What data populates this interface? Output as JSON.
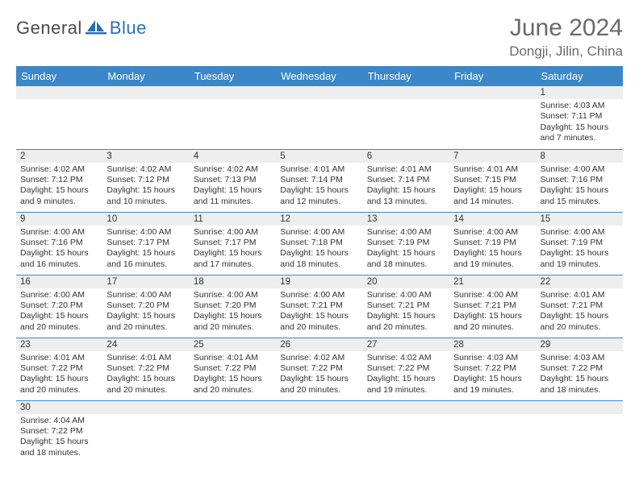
{
  "logo": {
    "part1": "General",
    "part2": "Blue"
  },
  "title": "June 2024",
  "location": "Dongji, Jilin, China",
  "colors": {
    "header_bg": "#3b87c8",
    "header_text": "#ffffff",
    "daynum_bg": "#eeeeee",
    "border": "#3b87c8",
    "title_color": "#6a6a6a",
    "logo_gray": "#4a4a4a",
    "logo_blue": "#2a6fb5"
  },
  "weekdays": [
    "Sunday",
    "Monday",
    "Tuesday",
    "Wednesday",
    "Thursday",
    "Friday",
    "Saturday"
  ],
  "weeks": [
    [
      null,
      null,
      null,
      null,
      null,
      null,
      {
        "n": "1",
        "sr": "4:03 AM",
        "ss": "7:11 PM",
        "dl": "15 hours and 7 minutes."
      }
    ],
    [
      {
        "n": "2",
        "sr": "4:02 AM",
        "ss": "7:12 PM",
        "dl": "15 hours and 9 minutes."
      },
      {
        "n": "3",
        "sr": "4:02 AM",
        "ss": "7:12 PM",
        "dl": "15 hours and 10 minutes."
      },
      {
        "n": "4",
        "sr": "4:02 AM",
        "ss": "7:13 PM",
        "dl": "15 hours and 11 minutes."
      },
      {
        "n": "5",
        "sr": "4:01 AM",
        "ss": "7:14 PM",
        "dl": "15 hours and 12 minutes."
      },
      {
        "n": "6",
        "sr": "4:01 AM",
        "ss": "7:14 PM",
        "dl": "15 hours and 13 minutes."
      },
      {
        "n": "7",
        "sr": "4:01 AM",
        "ss": "7:15 PM",
        "dl": "15 hours and 14 minutes."
      },
      {
        "n": "8",
        "sr": "4:00 AM",
        "ss": "7:16 PM",
        "dl": "15 hours and 15 minutes."
      }
    ],
    [
      {
        "n": "9",
        "sr": "4:00 AM",
        "ss": "7:16 PM",
        "dl": "15 hours and 16 minutes."
      },
      {
        "n": "10",
        "sr": "4:00 AM",
        "ss": "7:17 PM",
        "dl": "15 hours and 16 minutes."
      },
      {
        "n": "11",
        "sr": "4:00 AM",
        "ss": "7:17 PM",
        "dl": "15 hours and 17 minutes."
      },
      {
        "n": "12",
        "sr": "4:00 AM",
        "ss": "7:18 PM",
        "dl": "15 hours and 18 minutes."
      },
      {
        "n": "13",
        "sr": "4:00 AM",
        "ss": "7:19 PM",
        "dl": "15 hours and 18 minutes."
      },
      {
        "n": "14",
        "sr": "4:00 AM",
        "ss": "7:19 PM",
        "dl": "15 hours and 19 minutes."
      },
      {
        "n": "15",
        "sr": "4:00 AM",
        "ss": "7:19 PM",
        "dl": "15 hours and 19 minutes."
      }
    ],
    [
      {
        "n": "16",
        "sr": "4:00 AM",
        "ss": "7:20 PM",
        "dl": "15 hours and 20 minutes."
      },
      {
        "n": "17",
        "sr": "4:00 AM",
        "ss": "7:20 PM",
        "dl": "15 hours and 20 minutes."
      },
      {
        "n": "18",
        "sr": "4:00 AM",
        "ss": "7:20 PM",
        "dl": "15 hours and 20 minutes."
      },
      {
        "n": "19",
        "sr": "4:00 AM",
        "ss": "7:21 PM",
        "dl": "15 hours and 20 minutes."
      },
      {
        "n": "20",
        "sr": "4:00 AM",
        "ss": "7:21 PM",
        "dl": "15 hours and 20 minutes."
      },
      {
        "n": "21",
        "sr": "4:00 AM",
        "ss": "7:21 PM",
        "dl": "15 hours and 20 minutes."
      },
      {
        "n": "22",
        "sr": "4:01 AM",
        "ss": "7:21 PM",
        "dl": "15 hours and 20 minutes."
      }
    ],
    [
      {
        "n": "23",
        "sr": "4:01 AM",
        "ss": "7:22 PM",
        "dl": "15 hours and 20 minutes."
      },
      {
        "n": "24",
        "sr": "4:01 AM",
        "ss": "7:22 PM",
        "dl": "15 hours and 20 minutes."
      },
      {
        "n": "25",
        "sr": "4:01 AM",
        "ss": "7:22 PM",
        "dl": "15 hours and 20 minutes."
      },
      {
        "n": "26",
        "sr": "4:02 AM",
        "ss": "7:22 PM",
        "dl": "15 hours and 20 minutes."
      },
      {
        "n": "27",
        "sr": "4:02 AM",
        "ss": "7:22 PM",
        "dl": "15 hours and 19 minutes."
      },
      {
        "n": "28",
        "sr": "4:03 AM",
        "ss": "7:22 PM",
        "dl": "15 hours and 19 minutes."
      },
      {
        "n": "29",
        "sr": "4:03 AM",
        "ss": "7:22 PM",
        "dl": "15 hours and 18 minutes."
      }
    ],
    [
      {
        "n": "30",
        "sr": "4:04 AM",
        "ss": "7:22 PM",
        "dl": "15 hours and 18 minutes."
      },
      null,
      null,
      null,
      null,
      null,
      null
    ]
  ],
  "labels": {
    "sunrise": "Sunrise: ",
    "sunset": "Sunset: ",
    "daylight": "Daylight: "
  }
}
